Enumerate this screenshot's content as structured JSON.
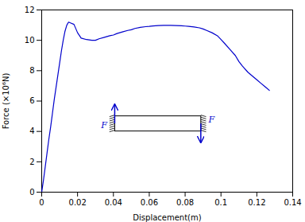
{
  "chart_data": {
    "type": "line",
    "xlabel": "Displacement(m)",
    "ylabel": "Force (×10⁶N)",
    "color": "#0000cc",
    "xlim": [
      0,
      0.14
    ],
    "ylim": [
      0,
      12
    ],
    "xticks": [
      0,
      0.02,
      0.04,
      0.06,
      0.08,
      0.1,
      0.12,
      0.14
    ],
    "yticks": [
      0,
      2,
      4,
      6,
      8,
      10,
      12
    ],
    "x": [
      0,
      0.001,
      0.002,
      0.003,
      0.004,
      0.005,
      0.006,
      0.007,
      0.008,
      0.009,
      0.01,
      0.011,
      0.012,
      0.013,
      0.014,
      0.015,
      0.016,
      0.018,
      0.02,
      0.022,
      0.025,
      0.028,
      0.03,
      0.032,
      0.035,
      0.038,
      0.04,
      0.042,
      0.045,
      0.048,
      0.05,
      0.052,
      0.055,
      0.058,
      0.06,
      0.062,
      0.065,
      0.068,
      0.07,
      0.072,
      0.075,
      0.078,
      0.08,
      0.082,
      0.085,
      0.088,
      0.09,
      0.092,
      0.095,
      0.098,
      0.1,
      0.102,
      0.105,
      0.108,
      0.11,
      0.112,
      0.115,
      0.118,
      0.12,
      0.122,
      0.125,
      0.127
    ],
    "values": [
      0,
      0.8,
      1.7,
      2.6,
      3.5,
      4.3,
      5.2,
      6.1,
      6.9,
      7.7,
      8.5,
      9.3,
      10.0,
      10.6,
      11.0,
      11.2,
      11.15,
      11.05,
      10.5,
      10.15,
      10.05,
      10.0,
      10.0,
      10.1,
      10.2,
      10.3,
      10.35,
      10.45,
      10.55,
      10.65,
      10.7,
      10.78,
      10.85,
      10.9,
      10.92,
      10.95,
      10.97,
      10.98,
      10.98,
      10.98,
      10.97,
      10.96,
      10.94,
      10.92,
      10.88,
      10.82,
      10.75,
      10.65,
      10.5,
      10.3,
      10.05,
      9.8,
      9.4,
      9.0,
      8.6,
      8.3,
      7.9,
      7.6,
      7.4,
      7.2,
      6.9,
      6.7
    ],
    "annotations": [
      "F",
      "F"
    ]
  }
}
